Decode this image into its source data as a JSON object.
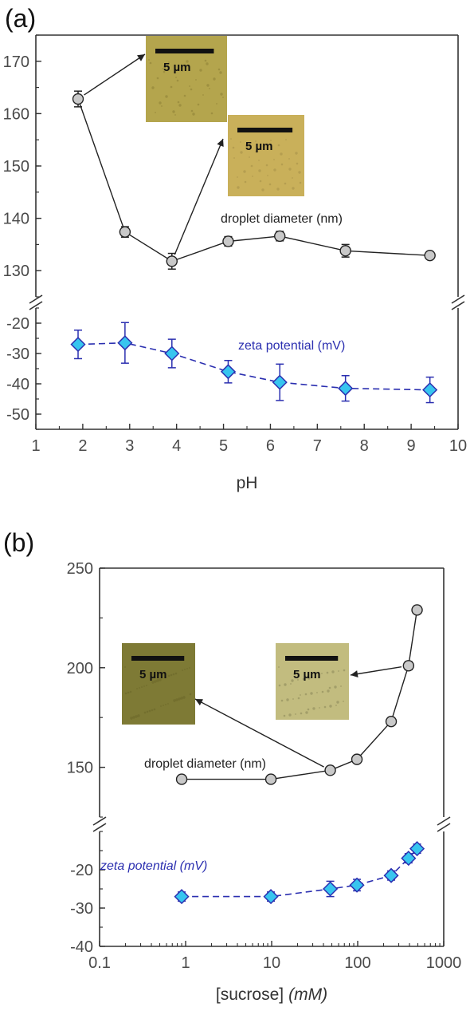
{
  "panel_labels": [
    "(a)",
    "(b)"
  ],
  "scale_bar_label": "5 µm",
  "chart_data": [
    {
      "type": "scatter",
      "panel": "(a)",
      "xlabel": "pH",
      "xlim": [
        1,
        10
      ],
      "x_ticks": [
        "1",
        "2",
        "3",
        "4",
        "5",
        "6",
        "7",
        "8",
        "9",
        "10"
      ],
      "upper_axis": {
        "range": [
          125,
          175
        ],
        "ticks": [
          "130",
          "140",
          "150",
          "160",
          "170"
        ]
      },
      "lower_axis": {
        "range": [
          -55,
          -15
        ],
        "ticks": [
          "-20",
          "-30",
          "-40",
          "-50"
        ]
      },
      "axis_break": true,
      "series": [
        {
          "name": "droplet diameter (nm)",
          "axis": "upper",
          "color": "#222222",
          "marker": "circle",
          "line": "solid",
          "x": [
            1.9,
            2.9,
            3.9,
            5.1,
            6.2,
            7.6,
            9.4
          ],
          "y": [
            162.8,
            137.4,
            131.8,
            135.6,
            136.6,
            133.8,
            132.9
          ],
          "error": [
            1.5,
            1.0,
            1.5,
            0.9,
            0.9,
            1.2,
            0.6
          ]
        },
        {
          "name": "zeta potential (mV)",
          "axis": "lower",
          "color": "#2b2fb0",
          "marker": "diamond",
          "line": "dashed",
          "x": [
            1.9,
            2.9,
            3.9,
            5.1,
            6.2,
            7.6,
            9.4
          ],
          "y": [
            -27,
            -26.5,
            -30,
            -36,
            -39.5,
            -41.5,
            -42
          ],
          "error": [
            4.7,
            6.7,
            4.7,
            3.7,
            6.0,
            4.2,
            4.2
          ]
        }
      ],
      "insets": [
        {
          "color": "#b4a54d",
          "texture": "#8f8238",
          "points_to_x": 1.9
        },
        {
          "color": "#c9b05a",
          "texture": "#a9934a",
          "points_to_x": 3.9
        }
      ]
    },
    {
      "type": "scatter",
      "panel": "(b)",
      "xlabel": "[sucrose]",
      "xlabel_unit": "(mM)",
      "xscale": "log",
      "xlim": [
        0.1,
        1000
      ],
      "x_ticks": [
        "0.1",
        "1",
        "10",
        "100",
        "1000"
      ],
      "upper_axis": {
        "range": [
          125,
          250
        ],
        "ticks": [
          "150",
          "200",
          "250"
        ]
      },
      "lower_axis": {
        "range": [
          -40,
          -10
        ],
        "ticks": [
          "-20",
          "-30",
          "-40"
        ]
      },
      "axis_break": true,
      "series": [
        {
          "name": "droplet diameter (nm)",
          "axis": "upper",
          "color": "#222222",
          "marker": "circle",
          "line": "solid",
          "x": [
            0.9,
            9.8,
            48,
            98,
            245,
            390,
            490
          ],
          "y": [
            144,
            144,
            148.5,
            154,
            173,
            201,
            229
          ],
          "error": [
            1.5,
            1.5,
            1.5,
            1.5,
            1.5,
            2.0,
            1.5
          ]
        },
        {
          "name": "zeta potential (mV)",
          "axis": "lower",
          "color": "#2b2fb0",
          "marker": "diamond",
          "line": "dashed",
          "x": [
            0.9,
            9.8,
            48,
            98,
            245,
            390,
            490
          ],
          "y": [
            -27,
            -27,
            -25,
            -24,
            -21.5,
            -17,
            -14.5
          ],
          "error": [
            1.2,
            1.2,
            2.0,
            1.5,
            1.2,
            1.2,
            1.2
          ]
        }
      ],
      "insets": [
        {
          "color": "#7e7a35",
          "texture": "#6c6829",
          "points_to_x": 48
        },
        {
          "color": "#c2bc7f",
          "texture": "#8e8a5a",
          "points_to_x": 390
        }
      ]
    }
  ]
}
